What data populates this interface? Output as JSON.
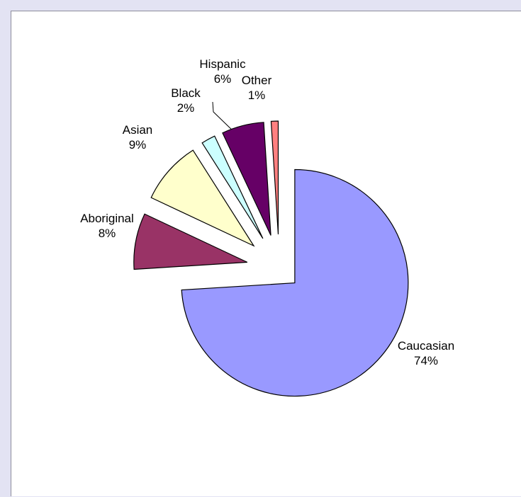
{
  "chart_data": {
    "type": "pie",
    "title": "",
    "slices": [
      {
        "label": "Caucasian",
        "value": 74,
        "value_label": "74%",
        "color": "#9999ff"
      },
      {
        "label": "Aboriginal",
        "value": 8,
        "value_label": "8%",
        "color": "#993366"
      },
      {
        "label": "Asian",
        "value": 9,
        "value_label": "9%",
        "color": "#ffffcc"
      },
      {
        "label": "Black",
        "value": 2,
        "value_label": "2%",
        "color": "#ccffff"
      },
      {
        "label": "Hispanic",
        "value": 6,
        "value_label": "6%",
        "color": "#660066"
      },
      {
        "label": "Other",
        "value": 1,
        "value_label": "1%",
        "color": "#ff8080"
      }
    ],
    "exploded": true,
    "legend": "none"
  }
}
